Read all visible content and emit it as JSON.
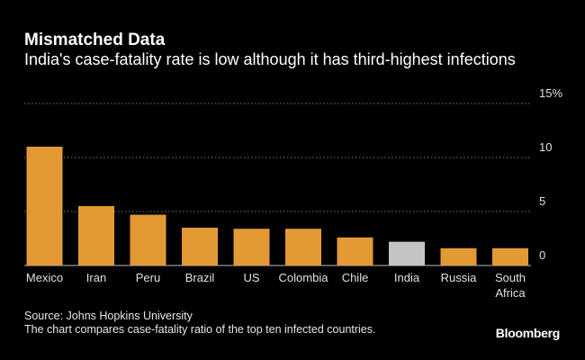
{
  "title": "Mismatched Data",
  "subtitle": "India's case-fatality rate is low although it has third-highest infections",
  "source": "Source: Johns Hopkins University",
  "note": "The chart compares case-fatality ratio of the top ten infected countries.",
  "brand": "Bloomberg",
  "colors": {
    "bar": "#e39a34",
    "highlight": "#c4c4c4",
    "grid": "#7a7a7a",
    "text": "#e0e0e0"
  },
  "chart_data": {
    "type": "bar",
    "title": "Mismatched Data",
    "subtitle": "India's case-fatality rate is low although it has third-highest infections",
    "xlabel": "",
    "ylabel": "",
    "unit": "%",
    "ylim": [
      0,
      15
    ],
    "yticks": [
      0,
      5,
      10,
      15
    ],
    "ytick_labels": [
      "0",
      "5",
      "10",
      "15%"
    ],
    "grid": true,
    "categories": [
      "Mexico",
      "Iran",
      "Peru",
      "Brazil",
      "US",
      "Colombia",
      "Chile",
      "India",
      "Russia",
      "South Africa"
    ],
    "values": [
      11.0,
      5.5,
      4.7,
      3.5,
      3.4,
      3.4,
      2.6,
      2.2,
      1.6,
      1.6
    ],
    "highlight": "India"
  }
}
